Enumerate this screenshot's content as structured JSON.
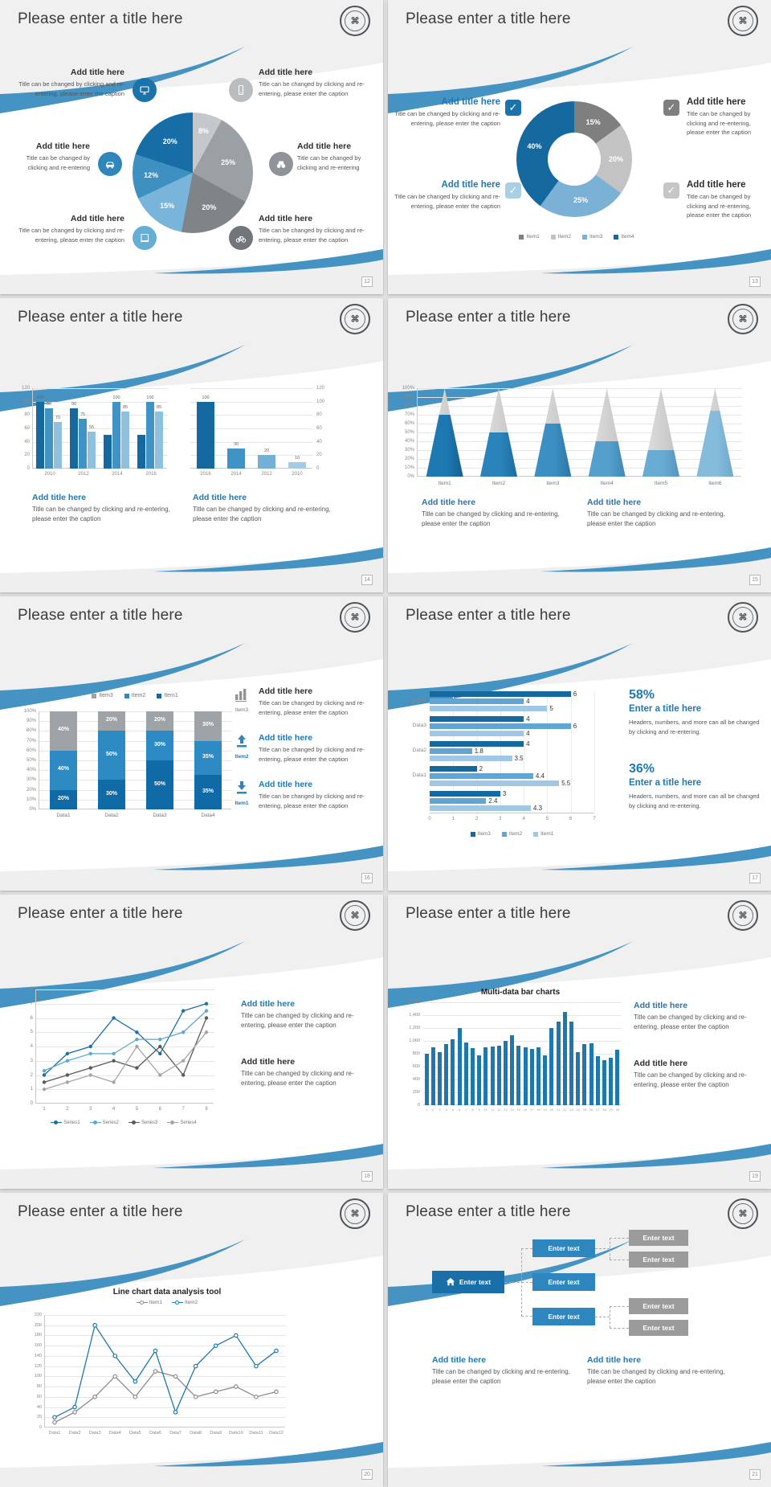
{
  "common": {
    "slide_title": "Please enter a title here",
    "add_title": "Add title here",
    "caption": "Title can be changed by clicking and re-entering, please enter the caption",
    "caption_short": "Title can be changed by clicking and re-entering",
    "colors": {
      "accent": "#2177b4",
      "swoosh": "#4493c3",
      "dark_blue": "#16699f",
      "mid_blue": "#3f93c5",
      "light_blue": "#7fb5d8",
      "gray": "#9b9b9b"
    }
  },
  "pages": [
    "12",
    "13",
    "14",
    "15",
    "16",
    "17",
    "18",
    "19",
    "20",
    "21"
  ],
  "icons": {
    "slide12": [
      "monitor-icon",
      "smartphone-icon",
      "car-icon",
      "binoculars-icon",
      "book-icon",
      "bicycle-icon"
    ],
    "slide13": [
      "checkbox-icon"
    ],
    "slide16": [
      "bar-chart-icon",
      "upload-icon",
      "download-icon"
    ],
    "slide21": [
      "home-icon"
    ]
  },
  "s12": {
    "callouts": [
      {
        "title": "Add title here",
        "caption": "Title can be changed by clicking and re-entering, please enter the caption"
      },
      {
        "title": "Add title here",
        "caption": "Title can be changed by clicking and re-entering, please enter the caption"
      },
      {
        "title": "Add title here",
        "caption": "Title can be changed by clicking and re-entering"
      },
      {
        "title": "Add title here",
        "caption": "Title can be changed by clicking and re-entering"
      },
      {
        "title": "Add title here",
        "caption": "Title can be changed by clicking and re-entering, please enter the caption"
      },
      {
        "title": "Add title here",
        "caption": "Title can be changed by clicking and re-entering, please enter the caption"
      }
    ]
  },
  "s13": {
    "blocks": [
      {
        "title": "Add title here",
        "caption": "Title can be changed by clicking and re-entering, please enter the caption"
      },
      {
        "title": "Add title here",
        "caption": "Title can be changed by clicking and re-entering, please enter the caption"
      },
      {
        "title": "Add title here",
        "caption": "Title can be changed by clicking and re-entering, please enter the caption"
      },
      {
        "title": "Add title here",
        "caption": "Title can be changed by clicking and re-entering, please enter the caption"
      }
    ]
  },
  "s14": {
    "blocks": [
      {
        "title": "Add title here",
        "caption": "Title can be changed by clicking and re-entering, please enter the caption"
      },
      {
        "title": "Add title here",
        "caption": "Title can be changed by clicking and re-entering, please enter the caption"
      }
    ]
  },
  "s15": {
    "blocks": [
      {
        "title": "Add title here",
        "caption": "Title can be changed by clicking and re-entering, please enter the caption"
      },
      {
        "title": "Add title here",
        "caption": "Title can be changed by clicking and re-entering, please enter the caption"
      }
    ]
  },
  "s16": {
    "items": [
      {
        "icon_label": "Item3",
        "title": "Add title here",
        "caption": "Title can be changed by clicking and re-entering, please enter the caption"
      },
      {
        "icon_label": "Item2",
        "title": "Add title here",
        "caption": "Title can be changed by clicking and re-entering, please enter the caption"
      },
      {
        "icon_label": "Item1",
        "title": "Add title here",
        "caption": "Title can be changed by clicking and re-entering, please enter the caption"
      }
    ]
  },
  "s17": {
    "stat1_value": "58%",
    "stat1_title": "Enter a title here",
    "stat2_value": "36%",
    "stat2_title": "Enter a title here",
    "stat_caption": "Headers, numbers, and more can all be changed by clicking and re-entering."
  },
  "s18": {
    "blocks": [
      {
        "title": "Add title here"
      },
      {
        "title": "Add title here"
      }
    ]
  },
  "s19": {
    "blocks": [
      {
        "title": "Add title here"
      },
      {
        "title": "Add title here"
      }
    ]
  },
  "s21": {
    "node_label": "Enter text",
    "blocks": [
      {
        "title": "Add title here",
        "caption": "Title can be changed by clicking and re-entering, please enter the caption"
      },
      {
        "title": "Add title here",
        "caption": "Title can be changed by clicking and re-entering, please enter the caption"
      }
    ]
  },
  "chart_data": [
    {
      "type": "pie",
      "slide": "12",
      "values": [
        8,
        25,
        20,
        15,
        12,
        20
      ],
      "labels": [
        "8%",
        "25%",
        "20%",
        "15%",
        "12%",
        "20%"
      ],
      "colors": [
        "#c4c8cb",
        "#9aa0a4",
        "#7e8488",
        "#79b5da",
        "#3e90c1",
        "#176da6"
      ]
    },
    {
      "type": "pie",
      "donut": true,
      "slide": "13",
      "values": [
        15,
        20,
        25,
        40
      ],
      "labels": [
        "15%",
        "20%",
        "25%",
        "40%"
      ],
      "colors": [
        "#7f7f7f",
        "#c3c3c3",
        "#7cb1d6",
        "#16699f"
      ],
      "legend": [
        {
          "label": "Item1",
          "color": "#7f7f7f"
        },
        {
          "label": "Item2",
          "color": "#c3c3c3"
        },
        {
          "label": "Item3",
          "color": "#7cb1d6"
        },
        {
          "label": "Item4",
          "color": "#16699f"
        }
      ]
    },
    {
      "type": "bar",
      "slide": "14-left",
      "categories": [
        "2010",
        "2012",
        "2014",
        "2016"
      ],
      "series": [
        {
          "name": "series1",
          "color": "#16699f",
          "values": [
            100,
            90,
            50,
            50
          ],
          "labels": [
            "100",
            "90",
            "",
            ""
          ]
        },
        {
          "name": "series2",
          "color": "#3f93c5",
          "values": [
            90,
            75,
            100,
            100
          ],
          "labels": [
            "90",
            "75",
            "100",
            "100"
          ]
        },
        {
          "name": "series3",
          "color": "#8fc0de",
          "values": [
            70,
            55,
            85,
            85
          ],
          "labels": [
            "70",
            "55",
            "85",
            "85"
          ]
        }
      ],
      "ylim": [
        0,
        120
      ],
      "yticks": [
        [
          0,
          "0"
        ],
        [
          20,
          "20"
        ],
        [
          40,
          "40"
        ],
        [
          60,
          "60"
        ],
        [
          80,
          "80"
        ],
        [
          100,
          "100"
        ],
        [
          120,
          "120"
        ]
      ]
    },
    {
      "type": "bar",
      "slide": "14-right",
      "categories": [
        "2016",
        "2014",
        "2012",
        "2010"
      ],
      "values": [
        100,
        30,
        20,
        10
      ],
      "labels": [
        "100",
        "30",
        "20",
        "10"
      ],
      "colors": [
        "#16699f",
        "#3f93c5",
        "#74b0d6",
        "#a5cbe4"
      ],
      "ylim": [
        0,
        120
      ],
      "yticks": [
        [
          0,
          "0"
        ],
        [
          20,
          "20"
        ],
        [
          40,
          "40"
        ],
        [
          60,
          "60"
        ],
        [
          80,
          "80"
        ],
        [
          100,
          "100"
        ],
        [
          120,
          "120"
        ]
      ]
    },
    {
      "type": "cone",
      "slide": "15",
      "categories": [
        "Item1",
        "Item2",
        "Item3",
        "Item4",
        "Item5",
        "Item6"
      ],
      "values": [
        70,
        50,
        60,
        40,
        30,
        75
      ],
      "colors": [
        [
          "#1e79b2",
          "#14608f"
        ],
        [
          "#2a83ba",
          "#1d6da0"
        ],
        [
          "#3b8fc2",
          "#2a77a8"
        ],
        [
          "#549fcc",
          "#3f87b4"
        ],
        [
          "#68abd3",
          "#5595bf"
        ],
        [
          "#85bcdc",
          "#6fa9cc"
        ]
      ],
      "top_color": [
        "#e0e0e0",
        "#c2c2c2"
      ],
      "ylim": [
        0,
        100
      ],
      "yticks": [
        [
          0,
          "0%"
        ],
        [
          10,
          "10%"
        ],
        [
          20,
          "20%"
        ],
        [
          30,
          "30%"
        ],
        [
          40,
          "40%"
        ],
        [
          50,
          "50%"
        ],
        [
          60,
          "60%"
        ],
        [
          70,
          "70%"
        ],
        [
          80,
          "80%"
        ],
        [
          90,
          "90%"
        ],
        [
          100,
          "100%"
        ]
      ]
    },
    {
      "type": "stacked-bar",
      "slide": "16",
      "categories": [
        "Data1",
        "Data2",
        "Data3",
        "Data4"
      ],
      "series": [
        {
          "name": "Item1",
          "color": "#0f6aa5",
          "values": [
            20,
            30,
            50,
            35
          ]
        },
        {
          "name": "Item2",
          "color": "#2e8ac2",
          "values": [
            40,
            50,
            30,
            35
          ]
        },
        {
          "name": "Item3",
          "color": "#9ea3a8",
          "values": [
            40,
            20,
            20,
            30
          ]
        }
      ],
      "legend": [
        {
          "label": "Item3",
          "color": "#9ea3a8"
        },
        {
          "label": "Item2",
          "color": "#2e8ac2"
        },
        {
          "label": "Item1",
          "color": "#0f6aa5"
        }
      ],
      "ylim": [
        0,
        100
      ],
      "yticks": [
        [
          0,
          "0%"
        ],
        [
          10,
          "10%"
        ],
        [
          20,
          "20%"
        ],
        [
          30,
          "30%"
        ],
        [
          40,
          "40%"
        ],
        [
          50,
          "50%"
        ],
        [
          60,
          "60%"
        ],
        [
          70,
          "70%"
        ],
        [
          80,
          "80%"
        ],
        [
          90,
          "90%"
        ],
        [
          100,
          "100%"
        ]
      ]
    },
    {
      "type": "hbar",
      "slide": "17",
      "groups": [
        {
          "label": "Data4",
          "values": [
            6,
            4,
            5
          ]
        },
        {
          "label": "Data3",
          "values": [
            4,
            6,
            4
          ]
        },
        {
          "label": "Data2",
          "values": [
            4,
            1.8,
            3.5
          ]
        },
        {
          "label": "Data1",
          "values": [
            2,
            4.4,
            5.5
          ]
        },
        {
          "label": "",
          "values": [
            3,
            2.4,
            4.3
          ]
        }
      ],
      "colors": [
        "#15699f",
        "#63a5d2",
        "#a0c8e4"
      ],
      "xlim": [
        0,
        7
      ],
      "xticks": [
        "0",
        "1",
        "2",
        "3",
        "4",
        "5",
        "6",
        "7"
      ],
      "legend": [
        {
          "label": "Item3",
          "color": "#15699f"
        },
        {
          "label": "Item2",
          "color": "#63a5d2"
        },
        {
          "label": "Item1",
          "color": "#a0c8e4"
        }
      ]
    },
    {
      "type": "line",
      "slide": "18",
      "x": [
        "1",
        "2",
        "3",
        "4",
        "5",
        "6",
        "7",
        "8"
      ],
      "ymax": 8,
      "yticks": [
        [
          0,
          "0"
        ],
        [
          1,
          "1"
        ],
        [
          2,
          "2"
        ],
        [
          3,
          "3"
        ],
        [
          4,
          "4"
        ],
        [
          5,
          "5"
        ],
        [
          6,
          "6"
        ],
        [
          7,
          "7"
        ],
        [
          8,
          "8"
        ]
      ],
      "series": [
        {
          "name": "Series1",
          "color": "#1a6fa8",
          "values": [
            2,
            3.5,
            4,
            6,
            5,
            3.5,
            6.5,
            7
          ]
        },
        {
          "name": "Series2",
          "color": "#5fa8d3",
          "values": [
            2.3,
            3,
            3.5,
            3.5,
            4.5,
            4.5,
            5,
            6.5
          ]
        },
        {
          "name": "Series3",
          "color": "#595959",
          "values": [
            1.5,
            2,
            2.5,
            3,
            2.5,
            4,
            2,
            6
          ]
        },
        {
          "name": "Series4",
          "color": "#a6a6a6",
          "values": [
            1,
            1.5,
            2,
            1.5,
            4,
            2,
            3,
            5
          ]
        }
      ]
    },
    {
      "type": "bar",
      "slide": "19",
      "title": "Multi-data bar charts",
      "color": "#1f78ad",
      "categories": [
        "1",
        "2",
        "3",
        "4",
        "5",
        "6",
        "7",
        "8",
        "9",
        "10",
        "11",
        "12",
        "13",
        "14",
        "15",
        "16",
        "17",
        "18",
        "19",
        "20",
        "21",
        "22",
        "23",
        "24",
        "25",
        "26",
        "27",
        "28",
        "29",
        "30"
      ],
      "values": [
        800,
        900,
        830,
        950,
        1020,
        1200,
        980,
        890,
        780,
        900,
        910,
        930,
        1000,
        1090,
        930,
        900,
        880,
        900,
        770,
        1200,
        1300,
        1450,
        1300,
        830,
        950,
        960,
        760,
        700,
        740,
        860
      ],
      "ylim": [
        0,
        1600
      ],
      "yticks": [
        [
          0,
          "0"
        ],
        [
          200,
          "200"
        ],
        [
          400,
          "400"
        ],
        [
          600,
          "600"
        ],
        [
          800,
          "800"
        ],
        [
          1000,
          "1,000"
        ],
        [
          1200,
          "1,200"
        ],
        [
          1400,
          "1,400"
        ],
        [
          1600,
          "1,600"
        ]
      ]
    },
    {
      "type": "line",
      "slide": "20",
      "title": "Line chart data analysis tool",
      "open_markers": true,
      "x": [
        "Data1",
        "Data2",
        "Data3",
        "Data4",
        "Data5",
        "Data6",
        "Data7",
        "Data8",
        "Data9",
        "Data10",
        "Data11",
        "Data12"
      ],
      "ymax": 220,
      "yticks": [
        [
          0,
          "0"
        ],
        [
          20,
          "20"
        ],
        [
          40,
          "40"
        ],
        [
          60,
          "60"
        ],
        [
          80,
          "80"
        ],
        [
          100,
          "100"
        ],
        [
          120,
          "120"
        ],
        [
          140,
          "140"
        ],
        [
          160,
          "160"
        ],
        [
          180,
          "180"
        ],
        [
          200,
          "200"
        ],
        [
          220,
          "220"
        ]
      ],
      "series": [
        {
          "name": "Item1",
          "color": "#8c8c8c",
          "values": [
            10,
            30,
            60,
            100,
            60,
            110,
            100,
            60,
            70,
            80,
            60,
            70
          ]
        },
        {
          "name": "Item2",
          "color": "#1f78ad",
          "values": [
            20,
            40,
            200,
            140,
            90,
            150,
            30,
            120,
            160,
            180,
            120,
            150
          ]
        }
      ]
    }
  ]
}
